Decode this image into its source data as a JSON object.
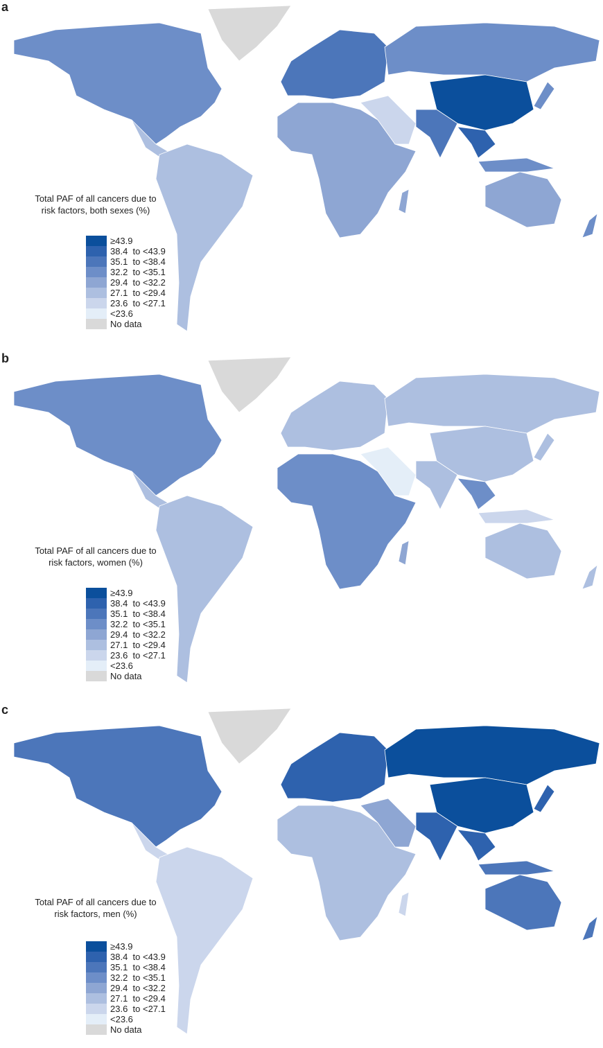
{
  "panels": [
    {
      "label": "a",
      "legend_title": "Total PAF of all cancers due to risk factors, both sexes (%)",
      "legend_items": [
        "≥43.9",
        "38.4  to <43.9",
        "35.1  to <38.4",
        "32.2  to <35.1",
        "29.4  to <32.2",
        "27.1  to <29.4",
        "23.6  to <27.1",
        "<23.6",
        "No data"
      ]
    },
    {
      "label": "b",
      "legend_title": "Total PAF of all cancers due to risk factors, women (%)",
      "legend_items": [
        "≥43.9",
        "38.4  to <43.9",
        "35.1  to <38.4",
        "32.2  to <35.1",
        "29.4  to <32.2",
        "27.1  to <29.4",
        "23.6  to <27.1",
        "<23.6",
        "No data"
      ]
    },
    {
      "label": "c",
      "legend_title": "Total PAF of all cancers due to risk factors, men (%)",
      "legend_items": [
        "≥43.9",
        "38.4  to <43.9",
        "35.1  to <38.4",
        "32.2  to <35.1",
        "29.4  to <32.2",
        "27.1  to <29.4",
        "23.6  to <27.1",
        "<23.6",
        "No data"
      ]
    }
  ],
  "legend_colors": [
    "#0b4f9c",
    "#2e62ae",
    "#4c76ba",
    "#6d8ec8",
    "#8ea6d3",
    "#adbfe0",
    "#cbd6ec",
    "#e4eef8",
    "#d9d9d9"
  ]
}
